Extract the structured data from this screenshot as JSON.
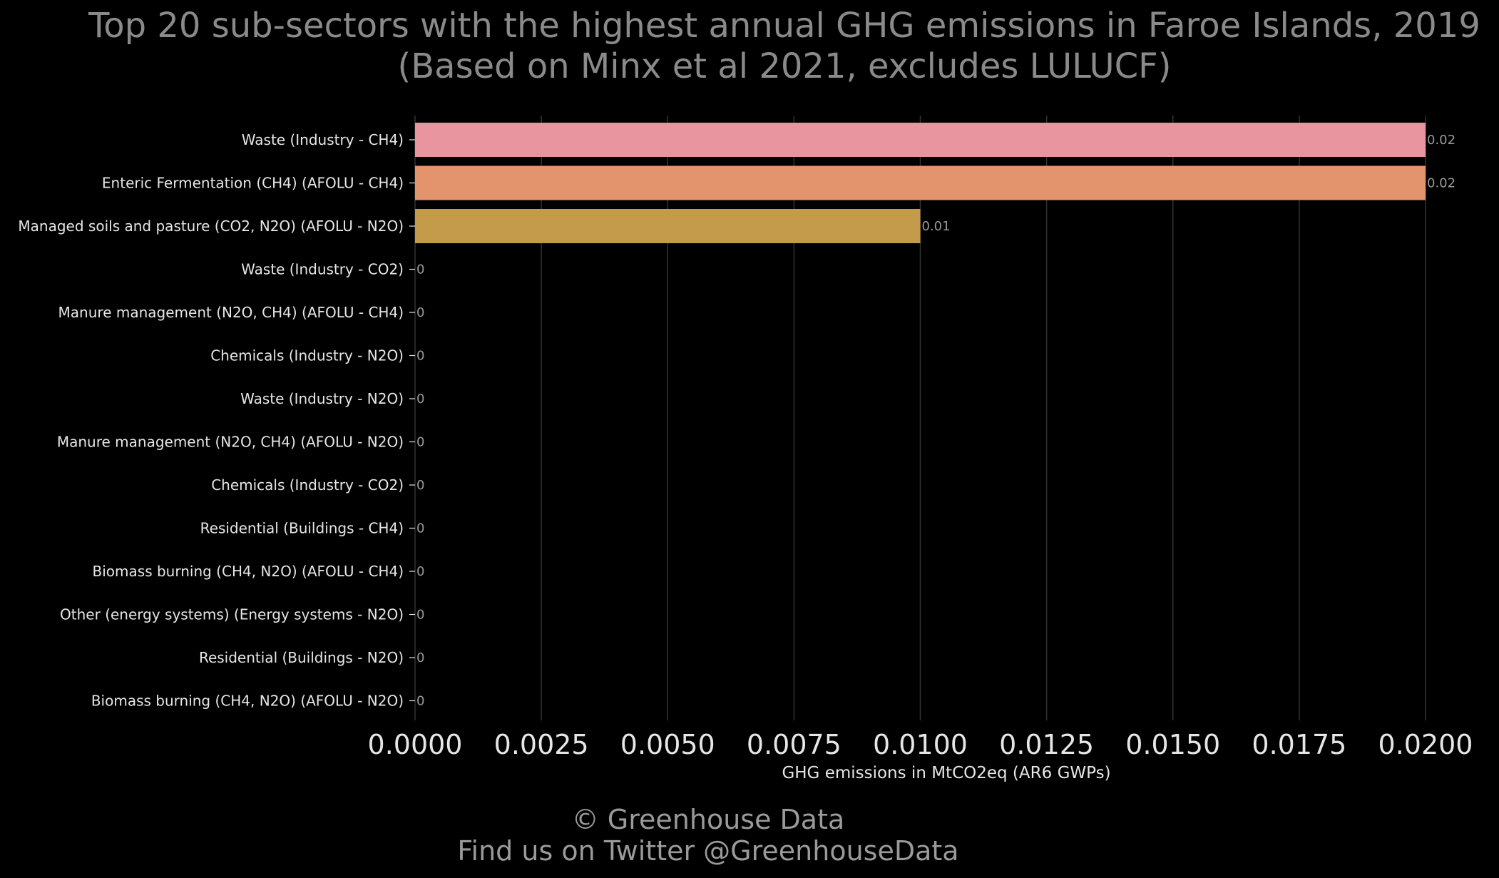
{
  "chart_data": {
    "type": "bar",
    "orientation": "horizontal",
    "title": "Top 20 sub-sectors with the highest annual GHG emissions in Faroe Islands, 2019",
    "subtitle": "(Based on Minx et al 2021, excludes LULUCF)",
    "xlabel": "GHG emissions in MtCO2eq (AR6 GWPs)",
    "ylabel": "",
    "xlim": [
      0,
      0.02
    ],
    "x_ticks": [
      "0.0000",
      "0.0025",
      "0.0050",
      "0.0075",
      "0.0100",
      "0.0125",
      "0.0150",
      "0.0175",
      "0.0200"
    ],
    "grid": "vertical",
    "categories": [
      "Waste (Industry - CH4)",
      "Enteric Fermentation (CH4) (AFOLU - CH4)",
      "Managed soils and pasture (CO2, N2O) (AFOLU - N2O)",
      "Waste (Industry - CO2)",
      "Manure management (N2O, CH4) (AFOLU - CH4)",
      "Chemicals (Industry - N2O)",
      "Waste (Industry - N2O)",
      "Manure management (N2O, CH4) (AFOLU - N2O)",
      "Chemicals (Industry - CO2)",
      "Residential (Buildings - CH4)",
      "Biomass burning (CH4, N2O) (AFOLU - CH4)",
      "Other (energy systems) (Energy systems - N2O)",
      "Residential (Buildings - N2O)",
      "Biomass burning (CH4, N2O) (AFOLU - N2O)"
    ],
    "values": [
      0.02,
      0.02,
      0.01,
      0,
      0,
      0,
      0,
      0,
      0,
      0,
      0,
      0,
      0,
      0
    ],
    "value_labels": [
      "0.02",
      "0.02",
      "0.01",
      "0",
      "0",
      "0",
      "0",
      "0",
      "0",
      "0",
      "0",
      "0",
      "0",
      "0"
    ],
    "colors": [
      "#e8959f",
      "#e4946c",
      "#c49a4b",
      "#a89e42",
      "#8fa343",
      "#6fa84e",
      "#4caa6a",
      "#3aab88",
      "#37aaa2",
      "#3aa7bb",
      "#4fa1d3",
      "#7e98e0",
      "#a58ee0",
      "#c887d6"
    ]
  },
  "footer": {
    "line1": "© Greenhouse Data",
    "line2": "Find us on Twitter @GreenhouseData"
  },
  "colors": {
    "background": "#000000",
    "grid": "#333333",
    "title": "#8a8a8a",
    "text": "#e6e6e6",
    "data_label": "#9a9a9a"
  }
}
